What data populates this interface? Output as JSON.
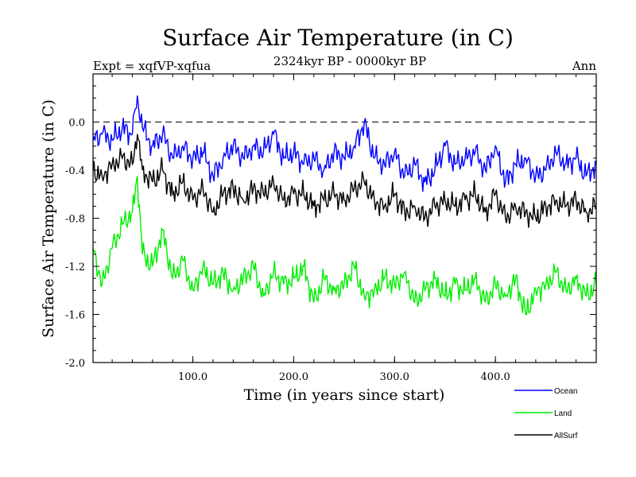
{
  "chart_data": {
    "type": "line",
    "title": "Surface Air Temperature (in C)",
    "subtitle": "2324kyr BP - 0000kyr BP",
    "experiment_label": "Expt = xqfVP-xqfua",
    "season_label": "Ann",
    "xlabel": "Time (in years since start)",
    "ylabel": "Surface Air Temperature (in C)",
    "xlim": [
      1,
      500
    ],
    "ylim": [
      -2.0,
      0.4
    ],
    "xticks": [
      100,
      200,
      300,
      400
    ],
    "xtick_labels": [
      "100.0",
      "200.0",
      "300.0",
      "400.0"
    ],
    "yticks": [
      -2.0,
      -1.6,
      -1.2,
      -0.8,
      -0.4,
      0.0
    ],
    "ytick_labels": [
      "-2.0",
      "-1.6",
      "-1.2",
      "-0.8",
      "-0.4",
      "0.0"
    ],
    "reference_line": 0.0,
    "legend_position": "bottom-right, below plot",
    "series": [
      {
        "name": "Ocean",
        "color": "#0000ff",
        "x": [
          1,
          10,
          20,
          30,
          40,
          45,
          50,
          60,
          70,
          80,
          90,
          100,
          110,
          120,
          130,
          140,
          150,
          160,
          170,
          180,
          190,
          200,
          210,
          220,
          230,
          240,
          250,
          260,
          270,
          280,
          290,
          300,
          310,
          320,
          330,
          340,
          350,
          360,
          370,
          380,
          390,
          400,
          410,
          420,
          430,
          440,
          450,
          460,
          470,
          480,
          490,
          500
        ],
        "values": [
          -0.15,
          -0.1,
          -0.15,
          -0.05,
          -0.1,
          0.22,
          -0.05,
          -0.2,
          -0.1,
          -0.3,
          -0.2,
          -0.3,
          -0.25,
          -0.45,
          -0.3,
          -0.2,
          -0.3,
          -0.2,
          -0.25,
          -0.1,
          -0.3,
          -0.25,
          -0.35,
          -0.3,
          -0.4,
          -0.25,
          -0.3,
          -0.2,
          0.0,
          -0.3,
          -0.35,
          -0.25,
          -0.45,
          -0.35,
          -0.5,
          -0.4,
          -0.2,
          -0.35,
          -0.3,
          -0.25,
          -0.4,
          -0.2,
          -0.5,
          -0.35,
          -0.3,
          -0.45,
          -0.4,
          -0.25,
          -0.35,
          -0.3,
          -0.45,
          -0.35
        ]
      },
      {
        "name": "Land",
        "color": "#00ee00",
        "x": [
          1,
          10,
          20,
          30,
          40,
          45,
          50,
          60,
          70,
          80,
          90,
          100,
          110,
          120,
          130,
          140,
          150,
          160,
          170,
          180,
          190,
          200,
          210,
          220,
          230,
          240,
          250,
          260,
          270,
          280,
          290,
          300,
          310,
          320,
          330,
          340,
          350,
          360,
          370,
          380,
          390,
          400,
          410,
          420,
          430,
          440,
          450,
          460,
          470,
          480,
          490,
          500
        ],
        "values": [
          -1.05,
          -1.35,
          -1.05,
          -0.85,
          -0.75,
          -0.45,
          -1.1,
          -1.2,
          -0.9,
          -1.3,
          -1.15,
          -1.4,
          -1.2,
          -1.35,
          -1.25,
          -1.4,
          -1.3,
          -1.2,
          -1.45,
          -1.25,
          -1.35,
          -1.3,
          -1.2,
          -1.5,
          -1.3,
          -1.4,
          -1.35,
          -1.2,
          -1.45,
          -1.4,
          -1.3,
          -1.35,
          -1.25,
          -1.5,
          -1.4,
          -1.3,
          -1.45,
          -1.35,
          -1.4,
          -1.3,
          -1.5,
          -1.35,
          -1.45,
          -1.3,
          -1.6,
          -1.4,
          -1.35,
          -1.25,
          -1.4,
          -1.3,
          -1.45,
          -1.35
        ]
      },
      {
        "name": "AllSurf",
        "color": "#000000",
        "x": [
          1,
          10,
          20,
          30,
          40,
          45,
          50,
          60,
          70,
          80,
          90,
          100,
          110,
          120,
          130,
          140,
          150,
          160,
          170,
          180,
          190,
          200,
          210,
          220,
          230,
          240,
          250,
          260,
          270,
          280,
          290,
          300,
          310,
          320,
          330,
          340,
          350,
          360,
          370,
          380,
          390,
          400,
          410,
          420,
          430,
          440,
          450,
          460,
          470,
          480,
          490,
          500
        ],
        "values": [
          -0.4,
          -0.45,
          -0.35,
          -0.3,
          -0.35,
          -0.1,
          -0.4,
          -0.5,
          -0.4,
          -0.6,
          -0.5,
          -0.65,
          -0.55,
          -0.75,
          -0.6,
          -0.55,
          -0.65,
          -0.55,
          -0.6,
          -0.5,
          -0.65,
          -0.6,
          -0.6,
          -0.7,
          -0.65,
          -0.6,
          -0.65,
          -0.55,
          -0.5,
          -0.65,
          -0.7,
          -0.6,
          -0.75,
          -0.7,
          -0.8,
          -0.7,
          -0.65,
          -0.7,
          -0.65,
          -0.6,
          -0.75,
          -0.6,
          -0.8,
          -0.7,
          -0.75,
          -0.8,
          -0.7,
          -0.65,
          -0.7,
          -0.65,
          -0.75,
          -0.7
        ]
      }
    ]
  }
}
